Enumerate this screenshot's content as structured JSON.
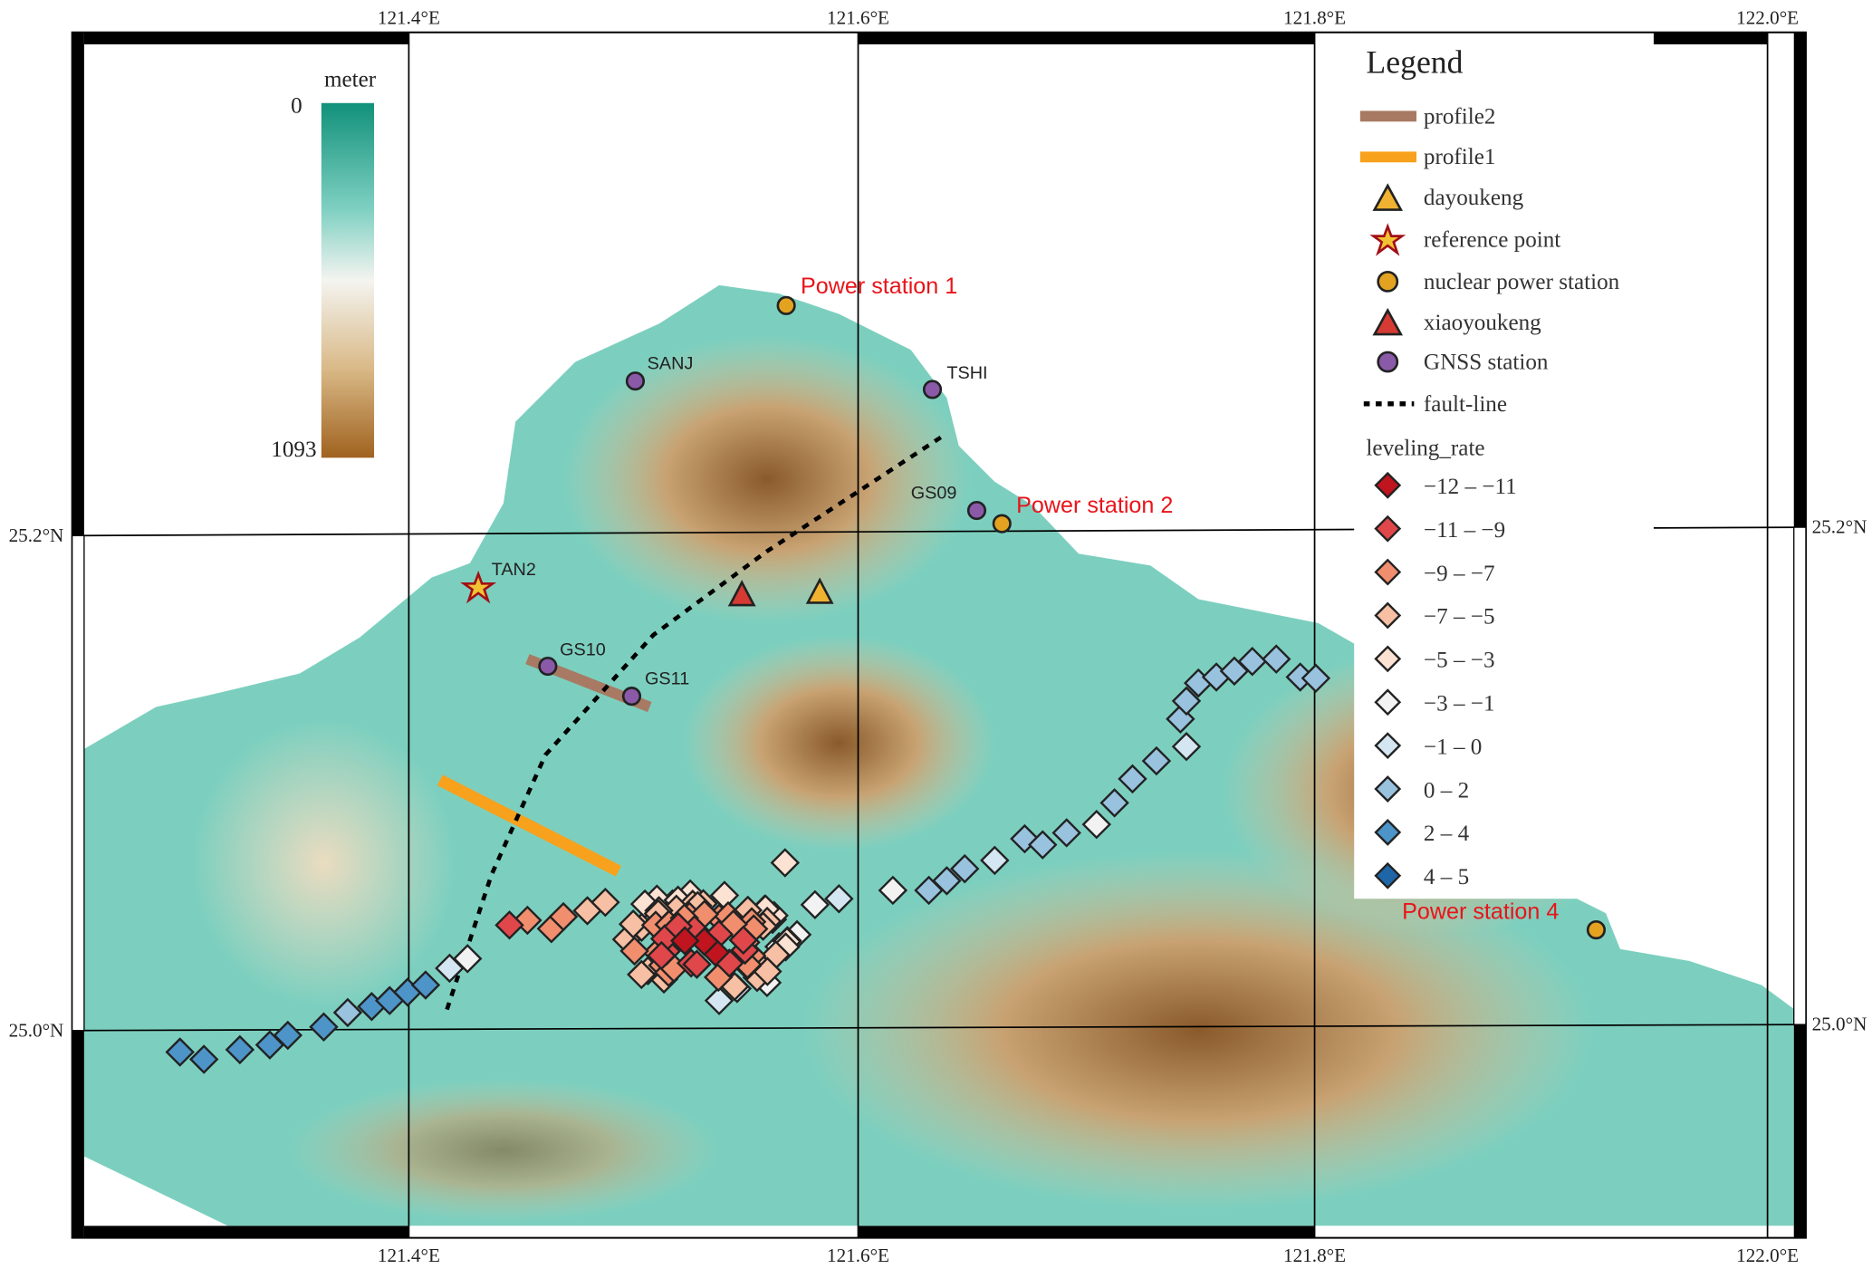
{
  "map": {
    "axes": {
      "top": [
        "121.4°E",
        "121.6°E",
        "121.8°E",
        "122.0°E"
      ],
      "bottom": [
        "121.4°E",
        "121.6°E",
        "121.8°E",
        "122.0°E"
      ],
      "left": [
        "25.2°N",
        "25.0°N"
      ],
      "right": [
        "25.2°N",
        "25.0°N"
      ]
    },
    "colorbar": {
      "unit": "meter",
      "min_label": "0",
      "max_label": "1093"
    },
    "legend": {
      "title": "Legend",
      "items": [
        "profile2",
        "profile1",
        "dayoukeng",
        "reference point",
        "nuclear power station",
        "xiaoyoukeng",
        "GNSS station",
        "fault-line"
      ],
      "rate_title": "leveling_rate",
      "rate_classes": [
        "−12 – −11",
        "−11 – −9",
        "−9 – −7",
        "−7 – −5",
        "−5 – −3",
        "−3 – −1",
        "−1 – 0",
        "0 – 2",
        "2 – 4",
        "4 – 5"
      ]
    },
    "labels": {
      "stations": [
        "SANJ",
        "TSHI",
        "GS09",
        "GS10",
        "GS11",
        "TAN2"
      ],
      "power_stations": [
        "Power station 1",
        "Power station 2",
        "Power station 4"
      ]
    }
  }
}
